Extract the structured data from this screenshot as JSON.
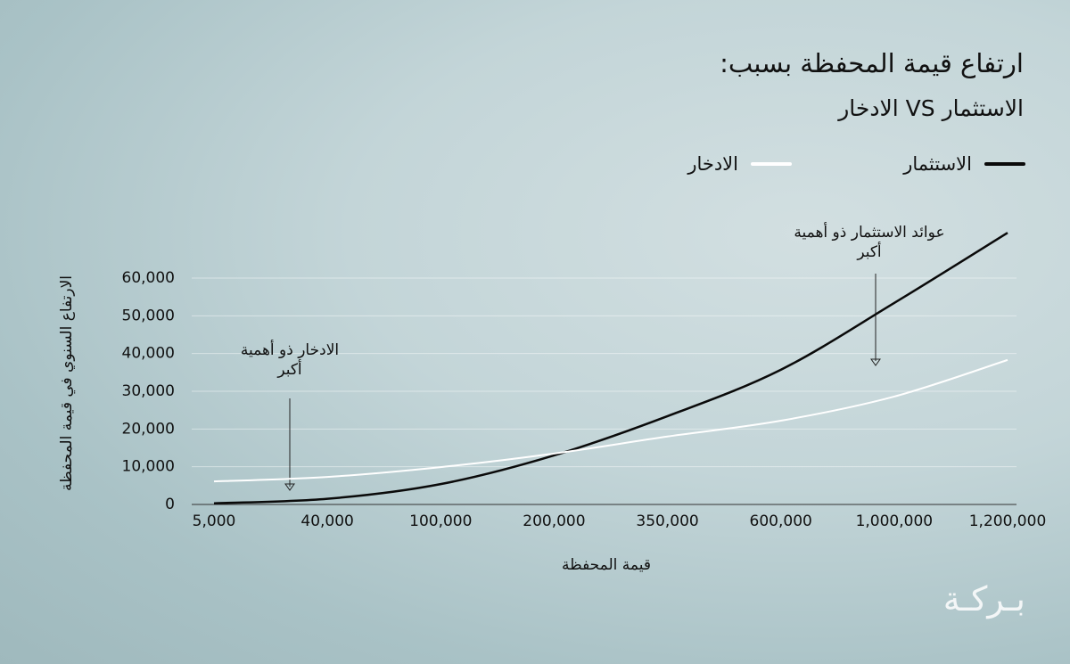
{
  "chart_data": {
    "type": "line",
    "title": "ارتفاع قيمة المحفظة بسبب:",
    "subtitle": "الاستثمار VS الادخار",
    "y_label": "الارتفاع السنوي في قيمة المحفظة",
    "x_label": "قيمة المحفظة",
    "categories": [
      "5,000",
      "40,000",
      "100,000",
      "200,000",
      "350,000",
      "600,000",
      "1,000,000",
      "1,200,000"
    ],
    "series": [
      {
        "name": "الاستثمار",
        "color": "#0a0a0a",
        "values": [
          300,
          1500,
          5400,
          13000,
          23400,
          35700,
          53400,
          72000
        ]
      },
      {
        "name": "الادخار",
        "color": "#ffffff",
        "values": [
          6100,
          7300,
          9900,
          13500,
          18000,
          22200,
          28600,
          38300
        ]
      }
    ],
    "ylim": [
      0,
      60000
    ],
    "yticks": [
      0,
      {
        "value": 10000,
        "label": "10,000"
      },
      {
        "value": 20000,
        "label": "20,000"
      },
      {
        "value": 30000,
        "label": "30,000"
      },
      {
        "value": 40000,
        "label": "40,000"
      },
      {
        "value": 50000,
        "label": "50,000"
      },
      {
        "value": 60000,
        "label": "60,000"
      }
    ],
    "grid": true,
    "annotations": [
      "الادخار ذو أهمية أكبر",
      "عوائد الاستثمار ذو أهمية أكبر"
    ],
    "brand": "بـركـة"
  }
}
